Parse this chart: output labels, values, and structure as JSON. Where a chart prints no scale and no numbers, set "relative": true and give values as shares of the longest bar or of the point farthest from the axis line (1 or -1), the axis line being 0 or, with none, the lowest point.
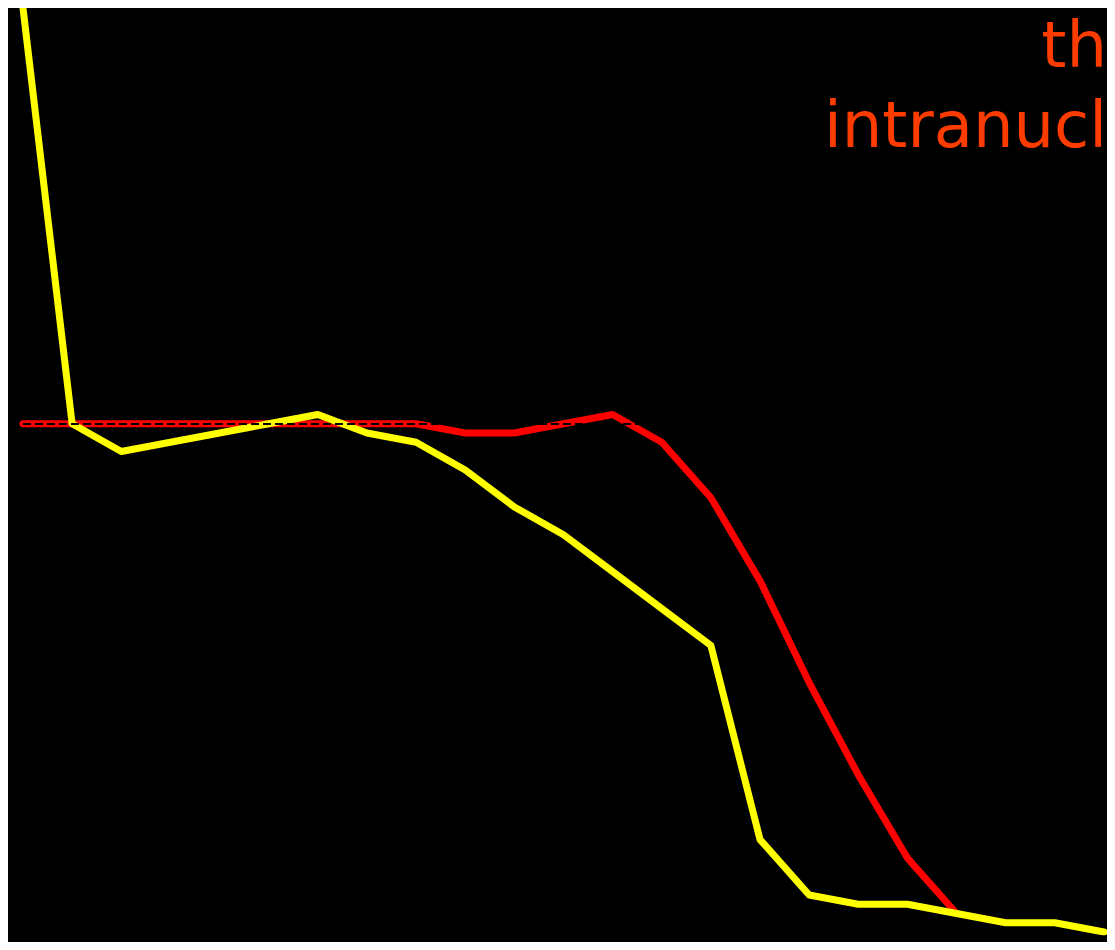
{
  "chart_data": {
    "type": "line",
    "relative": true,
    "grid": false,
    "marker": "none",
    "line_style": "solid",
    "categories": [
      null,
      null,
      null,
      null,
      null,
      null,
      null,
      null,
      null,
      null,
      null,
      null,
      null,
      null,
      null,
      null,
      null,
      null,
      null,
      null,
      null,
      null,
      null
    ],
    "series": [
      {
        "color": "#ff0000",
        "values": [
          0.55,
          0.55,
          0.55,
          0.55,
          0.55,
          0.55,
          0.55,
          0.55,
          0.55,
          0.54,
          0.54,
          0.55,
          0.56,
          0.53,
          0.47,
          0.38,
          0.27,
          0.17,
          0.08,
          0.02,
          null,
          null,
          null
        ]
      },
      {
        "color": "#ffff00",
        "values": [
          1,
          0.55,
          0.52,
          0.53,
          0.54,
          0.55,
          0.56,
          0.54,
          0.53,
          0.5,
          0.46,
          0.43,
          0.39,
          0.35,
          0.31,
          0.1,
          0.04,
          0.03,
          0.03,
          0.02,
          0.01,
          0.01,
          0
        ]
      }
    ],
    "ref_lines": [
      {
        "axis": "y",
        "value": 0.55,
        "color": "#000000",
        "line_style": "dashed"
      }
    ],
    "annotations": [
      "th",
      "intranucl"
    ]
  }
}
